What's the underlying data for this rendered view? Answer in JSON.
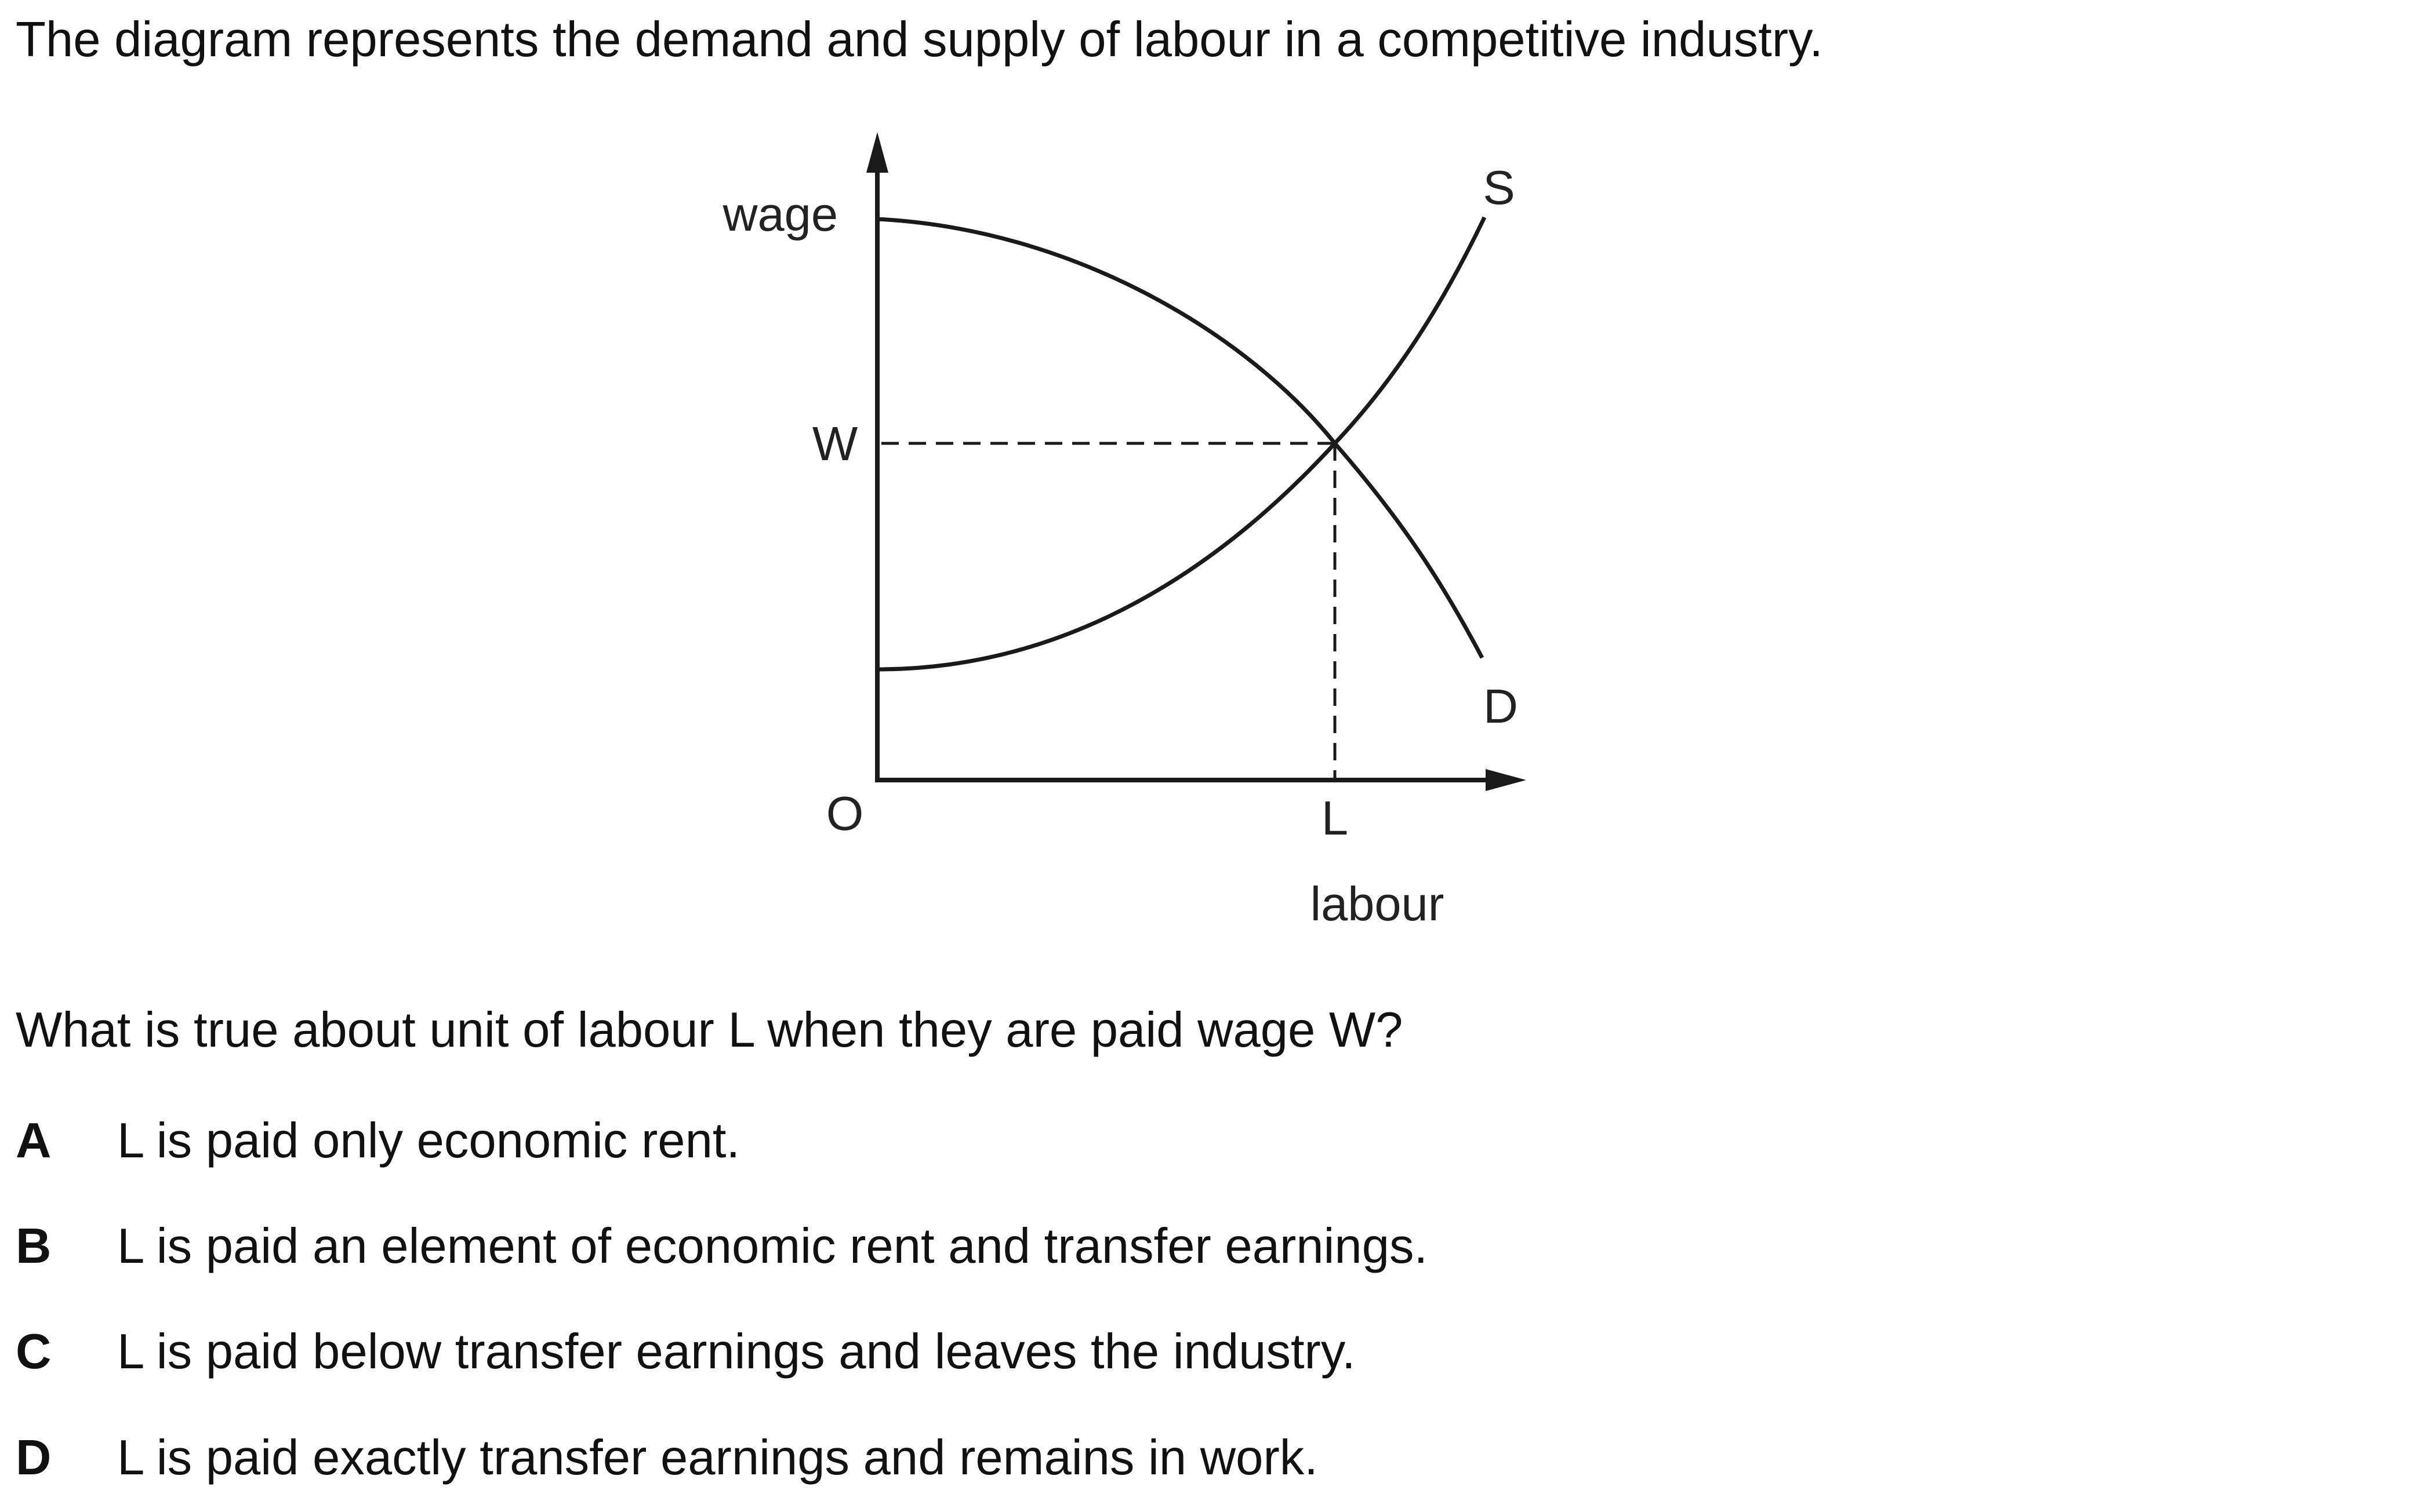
{
  "intro": "The diagram represents the demand and supply of labour in a competitive industry.",
  "diagram": {
    "y_axis_label": "wage",
    "x_axis_label": "labour",
    "origin_label": "O",
    "wage_label": "W",
    "quantity_label": "L",
    "supply_label": "S",
    "demand_label": "D"
  },
  "question": "What is true about unit of labour L when they are paid wage W?",
  "options": [
    {
      "letter": "A",
      "text": "L is paid only economic rent."
    },
    {
      "letter": "B",
      "text": "L is paid an element of economic rent and transfer earnings."
    },
    {
      "letter": "C",
      "text": "L is paid below transfer earnings and leaves the industry."
    },
    {
      "letter": "D",
      "text": "L is paid exactly transfer earnings and remains in work."
    }
  ]
}
